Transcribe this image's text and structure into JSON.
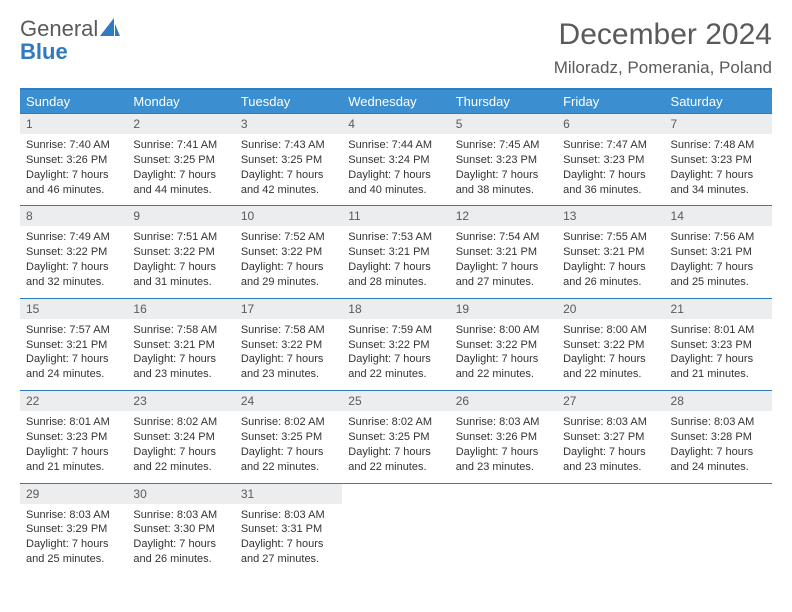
{
  "logo": {
    "text1": "General",
    "text2": "Blue"
  },
  "title": "December 2024",
  "location": "Miloradz, Pomerania, Poland",
  "colors": {
    "header_bg": "#3b8fd1",
    "border": "#2f7bbf",
    "daynum_bg": "#ecedee",
    "text": "#333333",
    "muted": "#5a5a5a"
  },
  "day_headers": [
    "Sunday",
    "Monday",
    "Tuesday",
    "Wednesday",
    "Thursday",
    "Friday",
    "Saturday"
  ],
  "weeks": [
    [
      {
        "n": "1",
        "sr": "7:40 AM",
        "ss": "3:26 PM",
        "dl": "7 hours and 46 minutes."
      },
      {
        "n": "2",
        "sr": "7:41 AM",
        "ss": "3:25 PM",
        "dl": "7 hours and 44 minutes."
      },
      {
        "n": "3",
        "sr": "7:43 AM",
        "ss": "3:25 PM",
        "dl": "7 hours and 42 minutes."
      },
      {
        "n": "4",
        "sr": "7:44 AM",
        "ss": "3:24 PM",
        "dl": "7 hours and 40 minutes."
      },
      {
        "n": "5",
        "sr": "7:45 AM",
        "ss": "3:23 PM",
        "dl": "7 hours and 38 minutes."
      },
      {
        "n": "6",
        "sr": "7:47 AM",
        "ss": "3:23 PM",
        "dl": "7 hours and 36 minutes."
      },
      {
        "n": "7",
        "sr": "7:48 AM",
        "ss": "3:23 PM",
        "dl": "7 hours and 34 minutes."
      }
    ],
    [
      {
        "n": "8",
        "sr": "7:49 AM",
        "ss": "3:22 PM",
        "dl": "7 hours and 32 minutes."
      },
      {
        "n": "9",
        "sr": "7:51 AM",
        "ss": "3:22 PM",
        "dl": "7 hours and 31 minutes."
      },
      {
        "n": "10",
        "sr": "7:52 AM",
        "ss": "3:22 PM",
        "dl": "7 hours and 29 minutes."
      },
      {
        "n": "11",
        "sr": "7:53 AM",
        "ss": "3:21 PM",
        "dl": "7 hours and 28 minutes."
      },
      {
        "n": "12",
        "sr": "7:54 AM",
        "ss": "3:21 PM",
        "dl": "7 hours and 27 minutes."
      },
      {
        "n": "13",
        "sr": "7:55 AM",
        "ss": "3:21 PM",
        "dl": "7 hours and 26 minutes."
      },
      {
        "n": "14",
        "sr": "7:56 AM",
        "ss": "3:21 PM",
        "dl": "7 hours and 25 minutes."
      }
    ],
    [
      {
        "n": "15",
        "sr": "7:57 AM",
        "ss": "3:21 PM",
        "dl": "7 hours and 24 minutes."
      },
      {
        "n": "16",
        "sr": "7:58 AM",
        "ss": "3:21 PM",
        "dl": "7 hours and 23 minutes."
      },
      {
        "n": "17",
        "sr": "7:58 AM",
        "ss": "3:22 PM",
        "dl": "7 hours and 23 minutes."
      },
      {
        "n": "18",
        "sr": "7:59 AM",
        "ss": "3:22 PM",
        "dl": "7 hours and 22 minutes."
      },
      {
        "n": "19",
        "sr": "8:00 AM",
        "ss": "3:22 PM",
        "dl": "7 hours and 22 minutes."
      },
      {
        "n": "20",
        "sr": "8:00 AM",
        "ss": "3:22 PM",
        "dl": "7 hours and 22 minutes."
      },
      {
        "n": "21",
        "sr": "8:01 AM",
        "ss": "3:23 PM",
        "dl": "7 hours and 21 minutes."
      }
    ],
    [
      {
        "n": "22",
        "sr": "8:01 AM",
        "ss": "3:23 PM",
        "dl": "7 hours and 21 minutes."
      },
      {
        "n": "23",
        "sr": "8:02 AM",
        "ss": "3:24 PM",
        "dl": "7 hours and 22 minutes."
      },
      {
        "n": "24",
        "sr": "8:02 AM",
        "ss": "3:25 PM",
        "dl": "7 hours and 22 minutes."
      },
      {
        "n": "25",
        "sr": "8:02 AM",
        "ss": "3:25 PM",
        "dl": "7 hours and 22 minutes."
      },
      {
        "n": "26",
        "sr": "8:03 AM",
        "ss": "3:26 PM",
        "dl": "7 hours and 23 minutes."
      },
      {
        "n": "27",
        "sr": "8:03 AM",
        "ss": "3:27 PM",
        "dl": "7 hours and 23 minutes."
      },
      {
        "n": "28",
        "sr": "8:03 AM",
        "ss": "3:28 PM",
        "dl": "7 hours and 24 minutes."
      }
    ],
    [
      {
        "n": "29",
        "sr": "8:03 AM",
        "ss": "3:29 PM",
        "dl": "7 hours and 25 minutes."
      },
      {
        "n": "30",
        "sr": "8:03 AM",
        "ss": "3:30 PM",
        "dl": "7 hours and 26 minutes."
      },
      {
        "n": "31",
        "sr": "8:03 AM",
        "ss": "3:31 PM",
        "dl": "7 hours and 27 minutes."
      },
      null,
      null,
      null,
      null
    ]
  ],
  "labels": {
    "sunrise": "Sunrise: ",
    "sunset": "Sunset: ",
    "daylight": "Daylight: "
  }
}
